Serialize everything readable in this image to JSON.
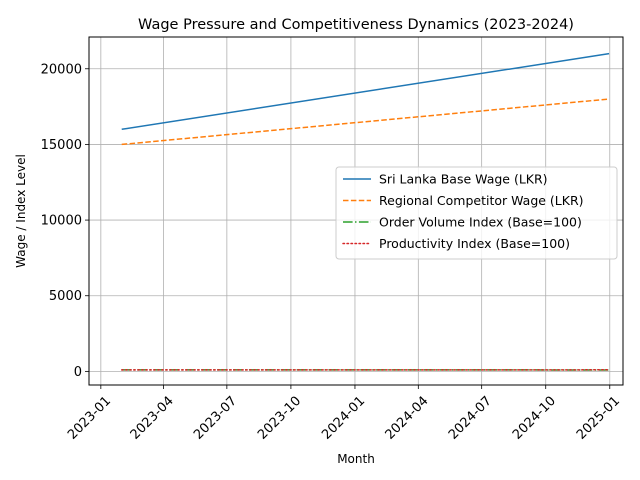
{
  "chart_data": {
    "type": "line",
    "title": "Wage Pressure and Competitiveness Dynamics (2023-2024)",
    "xlabel": "Month",
    "ylabel": "Wage / Index Level",
    "xlim": [
      "2022-12-15",
      "2025-01-20"
    ],
    "ylim": [
      -900,
      22100
    ],
    "x_ticks": [
      "2023-01",
      "2023-04",
      "2023-07",
      "2023-10",
      "2024-01",
      "2024-04",
      "2024-07",
      "2024-10",
      "2025-01"
    ],
    "x_tick_dates": [
      "2023-01-01",
      "2023-04-01",
      "2023-07-01",
      "2023-10-01",
      "2024-01-01",
      "2024-04-01",
      "2024-07-01",
      "2024-10-01",
      "2025-01-01"
    ],
    "y_ticks": [
      0,
      5000,
      10000,
      15000,
      20000
    ],
    "grid": true,
    "legend_position": "center-right",
    "series": [
      {
        "name": "Sri Lanka Base Wage (LKR)",
        "color": "#1f77b4",
        "dash": "solid",
        "x": [
          "2023-01-31",
          "2024-12-31"
        ],
        "values": [
          16000,
          21000
        ]
      },
      {
        "name": "Regional Competitor Wage (LKR)",
        "color": "#ff7f0e",
        "dash": "dashed",
        "x": [
          "2023-01-31",
          "2024-12-31"
        ],
        "values": [
          15000,
          18000
        ]
      },
      {
        "name": "Order Volume Index (Base=100)",
        "color": "#2ca02c",
        "dash": "dashdot",
        "x": [
          "2023-01-31",
          "2023-07-31",
          "2024-01-31",
          "2024-07-31",
          "2024-12-31"
        ],
        "values": [
          100,
          102,
          98,
          96,
          95
        ]
      },
      {
        "name": "Productivity Index (Base=100)",
        "color": "#d62728",
        "dash": "dotted",
        "x": [
          "2023-01-31",
          "2023-07-31",
          "2024-01-31",
          "2024-07-31",
          "2024-12-31"
        ],
        "values": [
          100,
          101,
          102,
          103,
          104
        ]
      }
    ]
  }
}
